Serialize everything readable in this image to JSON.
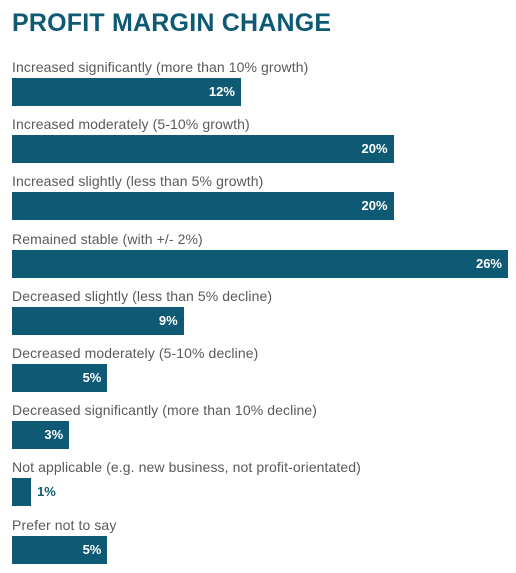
{
  "chart_data": {
    "type": "bar",
    "orientation": "horizontal",
    "title": "PROFIT MARGIN CHANGE",
    "categories": [
      "Increased significantly (more than 10% growth)",
      "Increased moderately (5-10% growth)",
      "Increased slightly (less than 5% growth)",
      "Remained stable (with +/- 2%)",
      "Decreased slightly (less than 5% decline)",
      "Decreased moderately (5-10% decline)",
      "Decreased significantly (more than 10% decline)",
      "Not applicable (e.g. new business, not profit-orientated)",
      "Prefer not to say"
    ],
    "values": [
      12,
      20,
      20,
      26,
      9,
      5,
      3,
      1,
      5
    ],
    "value_labels": [
      "12%",
      "20%",
      "20%",
      "26%",
      "9%",
      "5%",
      "3%",
      "1%",
      "5%"
    ],
    "xlim": [
      0,
      26
    ],
    "grid": false,
    "legend": "none",
    "colors": {
      "bar": "#0e5a74",
      "title": "#0e5a74",
      "label": "#5a5a5a",
      "value_text_inside": "#ffffff"
    }
  }
}
